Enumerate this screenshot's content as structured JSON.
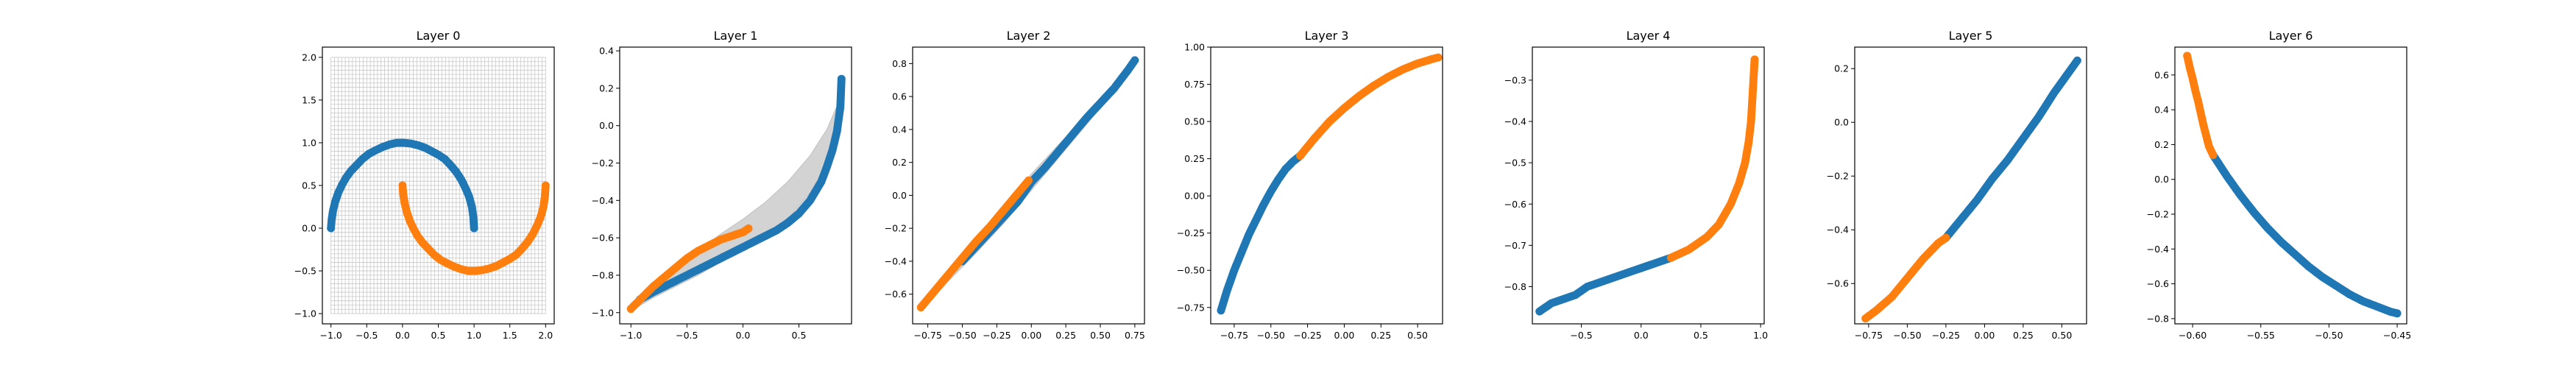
{
  "chart_data": [
    {
      "type": "scatter",
      "title": "Layer 0",
      "xlim": [
        -1.12,
        2.12
      ],
      "ylim": [
        -1.12,
        2.12
      ],
      "xticks": [
        -1.0,
        -0.5,
        0.0,
        0.5,
        1.0,
        1.5,
        2.0
      ],
      "yticks": [
        -1.0,
        -0.5,
        0.0,
        0.5,
        1.0,
        1.5,
        2.0
      ],
      "xtick_labels": [
        "−1.0",
        "−0.5",
        "0.0",
        "0.5",
        "1.0",
        "1.5",
        "2.0"
      ],
      "ytick_labels": [
        "−1.0",
        "−0.5",
        "0.0",
        "0.5",
        "1.0",
        "1.5",
        "2.0"
      ],
      "grid_mesh": {
        "x": [
          -1.0,
          2.0
        ],
        "y": [
          -1.0,
          2.0
        ],
        "lines": 61
      },
      "series": [
        {
          "color": "#1f77b4",
          "x": [
            -1.0,
            -0.99,
            -0.97,
            -0.94,
            -0.9,
            -0.85,
            -0.79,
            -0.72,
            -0.64,
            -0.56,
            -0.47,
            -0.38,
            -0.28,
            -0.18,
            -0.08,
            0.02,
            0.12,
            0.22,
            0.32,
            0.41,
            0.5,
            0.59,
            0.67,
            0.75,
            0.82,
            0.88,
            0.93,
            0.97,
            0.99,
            1.0
          ],
          "y": [
            0.0,
            0.1,
            0.21,
            0.31,
            0.41,
            0.5,
            0.59,
            0.67,
            0.74,
            0.81,
            0.87,
            0.91,
            0.95,
            0.98,
            1.0,
            1.0,
            0.99,
            0.97,
            0.94,
            0.9,
            0.86,
            0.81,
            0.74,
            0.66,
            0.57,
            0.47,
            0.37,
            0.25,
            0.13,
            0.0
          ]
        },
        {
          "color": "#ff7f0e",
          "x": [
            0.0,
            0.01,
            0.03,
            0.06,
            0.1,
            0.15,
            0.21,
            0.28,
            0.36,
            0.44,
            0.53,
            0.62,
            0.72,
            0.82,
            0.92,
            1.02,
            1.12,
            1.22,
            1.32,
            1.41,
            1.5,
            1.59,
            1.67,
            1.75,
            1.82,
            1.88,
            1.93,
            1.97,
            1.99,
            2.0
          ],
          "y": [
            0.5,
            0.4,
            0.29,
            0.19,
            0.09,
            0.0,
            -0.09,
            -0.17,
            -0.24,
            -0.31,
            -0.37,
            -0.41,
            -0.45,
            -0.48,
            -0.5,
            -0.5,
            -0.49,
            -0.47,
            -0.44,
            -0.4,
            -0.36,
            -0.31,
            -0.24,
            -0.16,
            -0.07,
            0.03,
            0.13,
            0.25,
            0.37,
            0.5
          ]
        }
      ]
    },
    {
      "type": "scatter",
      "title": "Layer 1",
      "xlim": [
        -1.1,
        0.97
      ],
      "ylim": [
        -1.06,
        0.42
      ],
      "xticks": [
        -1.0,
        -0.5,
        0.0,
        0.5
      ],
      "yticks": [
        -1.0,
        -0.8,
        -0.6,
        -0.4,
        -0.2,
        0.0,
        0.2,
        0.4
      ],
      "xtick_labels": [
        "−1.0",
        "−0.5",
        "0.0",
        "0.5"
      ],
      "ytick_labels": [
        "−1.0",
        "−0.8",
        "−0.6",
        "−0.4",
        "−0.2",
        "0.0",
        "0.2",
        "0.4"
      ],
      "band": {
        "x": [
          -1.0,
          -0.8,
          -0.6,
          -0.4,
          -0.2,
          0.0,
          0.2,
          0.4,
          0.6,
          0.75,
          0.85,
          0.88
        ],
        "upper": [
          -0.95,
          -0.86,
          -0.76,
          -0.67,
          -0.58,
          -0.5,
          -0.41,
          -0.3,
          -0.16,
          -0.02,
          0.12,
          0.22
        ],
        "lower": [
          -0.99,
          -0.92,
          -0.86,
          -0.8,
          -0.73,
          -0.67,
          -0.59,
          -0.5,
          -0.36,
          -0.2,
          -0.04,
          0.04
        ]
      },
      "series": [
        {
          "color": "#1f77b4",
          "x": [
            -0.92,
            -0.8,
            -0.7,
            -0.6,
            -0.5,
            -0.4,
            -0.3,
            -0.2,
            -0.1,
            0.0,
            0.1,
            0.2,
            0.3,
            0.4,
            0.5,
            0.6,
            0.7,
            0.75,
            0.8,
            0.84,
            0.87,
            0.88
          ],
          "y": [
            -0.93,
            -0.89,
            -0.86,
            -0.83,
            -0.8,
            -0.77,
            -0.74,
            -0.71,
            -0.68,
            -0.65,
            -0.62,
            -0.59,
            -0.56,
            -0.52,
            -0.47,
            -0.4,
            -0.3,
            -0.22,
            -0.13,
            -0.03,
            0.1,
            0.25
          ]
        },
        {
          "color": "#ff7f0e",
          "x": [
            -1.0,
            -0.95,
            -0.9,
            -0.85,
            -0.8,
            -0.7,
            -0.6,
            -0.5,
            -0.4,
            -0.3,
            -0.2,
            -0.1,
            0.0,
            0.05
          ],
          "y": [
            -0.98,
            -0.95,
            -0.92,
            -0.89,
            -0.86,
            -0.81,
            -0.76,
            -0.71,
            -0.67,
            -0.64,
            -0.61,
            -0.59,
            -0.57,
            -0.55
          ]
        }
      ]
    },
    {
      "type": "scatter",
      "title": "Layer 2",
      "xlim": [
        -0.86,
        0.82
      ],
      "ylim": [
        -0.78,
        0.9
      ],
      "xticks": [
        -0.75,
        -0.5,
        -0.25,
        0.0,
        0.25,
        0.5,
        0.75
      ],
      "yticks": [
        -0.6,
        -0.4,
        -0.2,
        0.0,
        0.2,
        0.4,
        0.6,
        0.8
      ],
      "xtick_labels": [
        "−0.75",
        "−0.50",
        "−0.25",
        "0.00",
        "0.25",
        "0.50",
        "0.75"
      ],
      "ytick_labels": [
        "−0.6",
        "−0.4",
        "−0.2",
        "0.0",
        "0.2",
        "0.4",
        "0.6",
        "0.8"
      ],
      "band": {
        "x": [
          -0.8,
          -0.6,
          -0.4,
          -0.2,
          0.0,
          0.2,
          0.4,
          0.6,
          0.75
        ],
        "upper": [
          -0.66,
          -0.46,
          -0.26,
          -0.06,
          0.13,
          0.31,
          0.48,
          0.66,
          0.8
        ],
        "lower": [
          -0.7,
          -0.52,
          -0.35,
          -0.17,
          0.03,
          0.23,
          0.43,
          0.63,
          0.8
        ]
      },
      "series": [
        {
          "color": "#1f77b4",
          "x": [
            -0.5,
            -0.4,
            -0.3,
            -0.2,
            -0.1,
            0.0,
            0.1,
            0.2,
            0.3,
            0.4,
            0.5,
            0.6,
            0.7,
            0.75
          ],
          "y": [
            -0.4,
            -0.31,
            -0.22,
            -0.13,
            -0.04,
            0.08,
            0.17,
            0.27,
            0.37,
            0.47,
            0.56,
            0.65,
            0.76,
            0.82
          ]
        },
        {
          "color": "#ff7f0e",
          "x": [
            -0.8,
            -0.7,
            -0.6,
            -0.5,
            -0.4,
            -0.3,
            -0.2,
            -0.1,
            -0.02
          ],
          "y": [
            -0.68,
            -0.58,
            -0.48,
            -0.38,
            -0.28,
            -0.19,
            -0.09,
            0.01,
            0.09
          ]
        }
      ]
    },
    {
      "type": "scatter",
      "title": "Layer 3",
      "xlim": [
        -0.91,
        0.67
      ],
      "ylim": [
        -0.86,
        1.0
      ],
      "xticks": [
        -0.75,
        -0.5,
        -0.25,
        0.0,
        0.25,
        0.5
      ],
      "yticks": [
        -0.75,
        -0.5,
        -0.25,
        0.0,
        0.25,
        0.5,
        0.75,
        1.0
      ],
      "xtick_labels": [
        "−0.75",
        "−0.50",
        "−0.25",
        "0.00",
        "0.25",
        "0.50"
      ],
      "ytick_labels": [
        "−0.75",
        "−0.50",
        "−0.25",
        "0.00",
        "0.25",
        "0.50",
        "0.75",
        "1.00"
      ],
      "series": [
        {
          "color": "#1f77b4",
          "x": [
            -0.84,
            -0.8,
            -0.75,
            -0.7,
            -0.65,
            -0.6,
            -0.55,
            -0.5,
            -0.45,
            -0.4,
            -0.35,
            -0.3
          ],
          "y": [
            -0.77,
            -0.64,
            -0.5,
            -0.38,
            -0.26,
            -0.16,
            -0.06,
            0.03,
            0.11,
            0.18,
            0.23,
            0.27
          ]
        },
        {
          "color": "#ff7f0e",
          "x": [
            -0.3,
            -0.2,
            -0.1,
            0.0,
            0.1,
            0.2,
            0.3,
            0.4,
            0.5,
            0.6,
            0.64
          ],
          "y": [
            0.27,
            0.39,
            0.5,
            0.59,
            0.67,
            0.74,
            0.8,
            0.85,
            0.89,
            0.92,
            0.93
          ]
        }
      ]
    },
    {
      "type": "scatter",
      "title": "Layer 4",
      "xlim": [
        -0.91,
        1.03
      ],
      "ylim": [
        -0.89,
        -0.22
      ],
      "xticks": [
        -0.5,
        0.0,
        0.5,
        1.0
      ],
      "yticks": [
        -0.8,
        -0.7,
        -0.6,
        -0.5,
        -0.4,
        -0.3
      ],
      "xtick_labels": [
        "−0.5",
        "0.0",
        "0.5",
        "1.0"
      ],
      "ytick_labels": [
        "−0.8",
        "−0.7",
        "−0.6",
        "−0.5",
        "−0.4",
        "−0.3"
      ],
      "series": [
        {
          "color": "#1f77b4",
          "x": [
            -0.85,
            -0.75,
            -0.65,
            -0.55,
            -0.45,
            -0.35,
            -0.25,
            -0.15,
            -0.05,
            0.05,
            0.15,
            0.25
          ],
          "y": [
            -0.86,
            -0.84,
            -0.83,
            -0.82,
            -0.8,
            -0.79,
            -0.78,
            -0.77,
            -0.76,
            -0.75,
            -0.74,
            -0.73
          ]
        },
        {
          "color": "#ff7f0e",
          "x": [
            0.25,
            0.4,
            0.55,
            0.65,
            0.75,
            0.82,
            0.87,
            0.9,
            0.92,
            0.93,
            0.94,
            0.95
          ],
          "y": [
            -0.73,
            -0.71,
            -0.68,
            -0.65,
            -0.6,
            -0.55,
            -0.5,
            -0.45,
            -0.4,
            -0.35,
            -0.3,
            -0.25
          ]
        }
      ]
    },
    {
      "type": "scatter",
      "title": "Layer 5",
      "xlim": [
        -0.84,
        0.66
      ],
      "ylim": [
        -0.75,
        0.28
      ],
      "xticks": [
        -0.75,
        -0.5,
        -0.25,
        0.0,
        0.25,
        0.5
      ],
      "yticks": [
        -0.6,
        -0.4,
        -0.2,
        0.0,
        0.2
      ],
      "xtick_labels": [
        "−0.75",
        "−0.50",
        "−0.25",
        "0.00",
        "0.25",
        "0.50"
      ],
      "ytick_labels": [
        "−0.6",
        "−0.4",
        "−0.2",
        "0.0",
        "0.2"
      ],
      "series": [
        {
          "color": "#1f77b4",
          "x": [
            -0.25,
            -0.15,
            -0.05,
            0.05,
            0.15,
            0.25,
            0.35,
            0.45,
            0.55,
            0.6
          ],
          "y": [
            -0.43,
            -0.36,
            -0.29,
            -0.21,
            -0.14,
            -0.06,
            0.02,
            0.11,
            0.19,
            0.23
          ]
        },
        {
          "color": "#ff7f0e",
          "x": [
            -0.77,
            -0.7,
            -0.6,
            -0.5,
            -0.4,
            -0.3,
            -0.25
          ],
          "y": [
            -0.73,
            -0.7,
            -0.65,
            -0.58,
            -0.51,
            -0.45,
            -0.43
          ]
        }
      ]
    },
    {
      "type": "scatter",
      "title": "Layer 6",
      "xlim": [
        -0.613,
        -0.443
      ],
      "ylim": [
        -0.83,
        0.76
      ],
      "xticks": [
        -0.6,
        -0.55,
        -0.5,
        -0.45
      ],
      "yticks": [
        -0.8,
        -0.6,
        -0.4,
        -0.2,
        0.0,
        0.2,
        0.4,
        0.6
      ],
      "xtick_labels": [
        "−0.60",
        "−0.55",
        "−0.50",
        "−0.45"
      ],
      "ytick_labels": [
        "−0.8",
        "−0.6",
        "−0.4",
        "−0.2",
        "0.0",
        "0.2",
        "0.4",
        "0.6"
      ],
      "series": [
        {
          "color": "#1f77b4",
          "x": [
            -0.585,
            -0.575,
            -0.565,
            -0.555,
            -0.545,
            -0.535,
            -0.525,
            -0.515,
            -0.505,
            -0.495,
            -0.485,
            -0.475,
            -0.465,
            -0.455,
            -0.45
          ],
          "y": [
            0.14,
            0.02,
            -0.09,
            -0.19,
            -0.28,
            -0.36,
            -0.43,
            -0.5,
            -0.56,
            -0.61,
            -0.66,
            -0.7,
            -0.73,
            -0.76,
            -0.77
          ]
        },
        {
          "color": "#ff7f0e",
          "x": [
            -0.604,
            -0.602,
            -0.6,
            -0.598,
            -0.596,
            -0.594,
            -0.592,
            -0.59,
            -0.588,
            -0.585
          ],
          "y": [
            0.71,
            0.64,
            0.58,
            0.51,
            0.45,
            0.38,
            0.31,
            0.25,
            0.19,
            0.14
          ]
        }
      ]
    }
  ]
}
